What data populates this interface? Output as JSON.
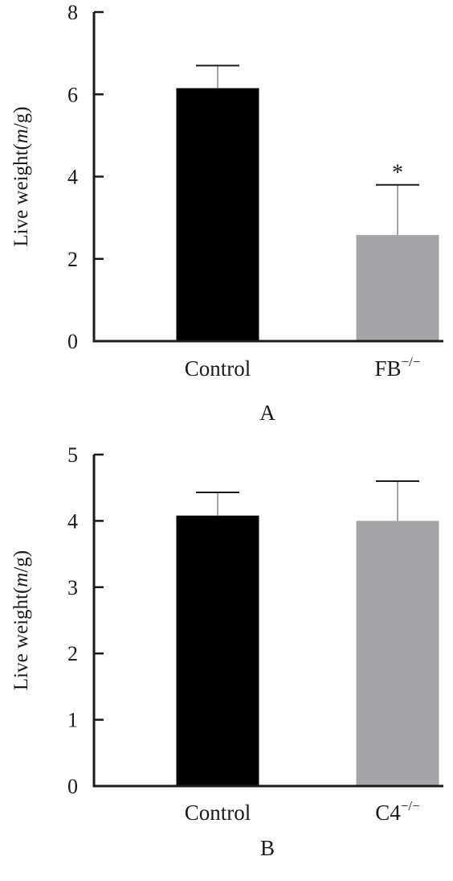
{
  "chart_data": [
    {
      "type": "bar",
      "panel_label": "A",
      "ylabel_prefix": "Live weight(",
      "ylabel_italic": "m",
      "ylabel_suffix": "/g)",
      "ylim": [
        0,
        8
      ],
      "yticks": [
        0,
        2,
        4,
        6,
        8
      ],
      "categories": [
        {
          "name": "Control",
          "sup": ""
        },
        {
          "name": "FB",
          "sup": "−/−"
        }
      ],
      "values": [
        6.15,
        2.58
      ],
      "errors": [
        0.55,
        1.22
      ],
      "annotations": [
        "",
        "*"
      ],
      "colors": [
        "#000000",
        "#a3a3a8"
      ],
      "grid": false
    },
    {
      "type": "bar",
      "panel_label": "B",
      "ylabel_prefix": "Live weight(",
      "ylabel_italic": "m",
      "ylabel_suffix": "/g)",
      "ylim": [
        0,
        5
      ],
      "yticks": [
        0,
        1,
        2,
        3,
        4,
        5
      ],
      "categories": [
        {
          "name": "Control",
          "sup": ""
        },
        {
          "name": "C4",
          "sup": "−/−"
        }
      ],
      "values": [
        4.08,
        4.0
      ],
      "errors": [
        0.35,
        0.6
      ],
      "annotations": [
        "",
        ""
      ],
      "colors": [
        "#000000",
        "#a3a3a8"
      ],
      "grid": false
    }
  ]
}
